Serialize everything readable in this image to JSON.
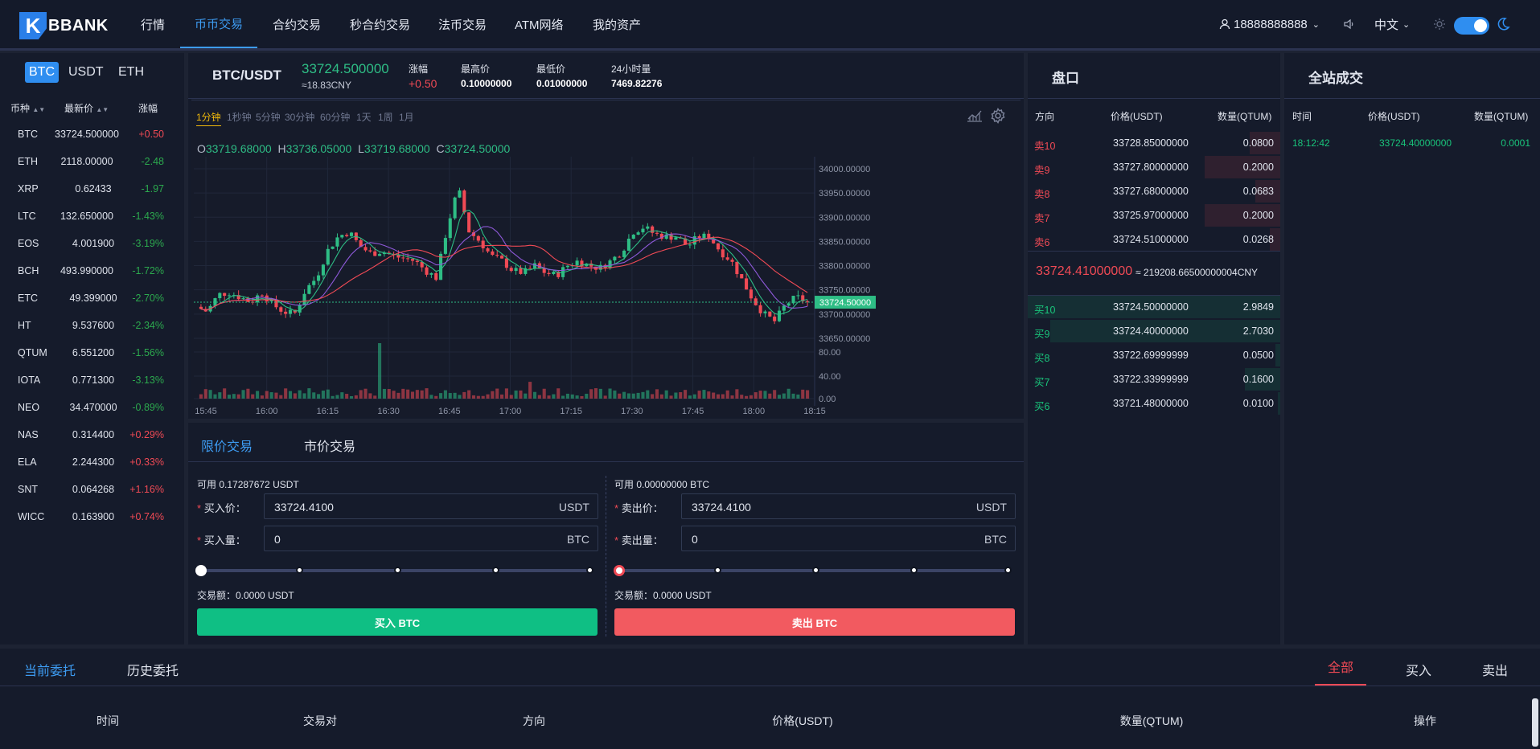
{
  "header": {
    "logo": "BBANK",
    "nav": [
      "行情",
      "币币交易",
      "合约交易",
      "秒合约交易",
      "法币交易",
      "ATM网络",
      "我的资产"
    ],
    "user": "18888888888",
    "lang": "中文"
  },
  "market": {
    "tabs": [
      "BTC",
      "USDT",
      "ETH"
    ],
    "headers": [
      "币种",
      "最新价",
      "涨幅"
    ],
    "rows": [
      {
        "coin": "BTC",
        "price": "33724.500000",
        "change": "+0.50",
        "dir": "up"
      },
      {
        "coin": "ETH",
        "price": "2118.00000",
        "change": "-2.48",
        "dir": "down"
      },
      {
        "coin": "XRP",
        "price": "0.62433",
        "change": "-1.97",
        "dir": "down"
      },
      {
        "coin": "LTC",
        "price": "132.650000",
        "change": "-1.43%",
        "dir": "down"
      },
      {
        "coin": "EOS",
        "price": "4.001900",
        "change": "-3.19%",
        "dir": "down"
      },
      {
        "coin": "BCH",
        "price": "493.990000",
        "change": "-1.72%",
        "dir": "down"
      },
      {
        "coin": "ETC",
        "price": "49.399000",
        "change": "-2.70%",
        "dir": "down"
      },
      {
        "coin": "HT",
        "price": "9.537600",
        "change": "-2.34%",
        "dir": "down"
      },
      {
        "coin": "QTUM",
        "price": "6.551200",
        "change": "-1.56%",
        "dir": "down"
      },
      {
        "coin": "IOTA",
        "price": "0.771300",
        "change": "-3.13%",
        "dir": "down"
      },
      {
        "coin": "NEO",
        "price": "34.470000",
        "change": "-0.89%",
        "dir": "down"
      },
      {
        "coin": "NAS",
        "price": "0.314400",
        "change": "+0.29%",
        "dir": "up"
      },
      {
        "coin": "ELA",
        "price": "2.244300",
        "change": "+0.33%",
        "dir": "up"
      },
      {
        "coin": "SNT",
        "price": "0.064268",
        "change": "+1.16%",
        "dir": "up"
      },
      {
        "coin": "WICC",
        "price": "0.163900",
        "change": "+0.74%",
        "dir": "up"
      }
    ]
  },
  "ticker": {
    "pair": "BTC/USDT",
    "price": "33724.500000",
    "cny": "≈18.83CNY",
    "change_label": "涨幅",
    "change": "+0.50",
    "high_label": "最高价",
    "high": "0.10000000",
    "low_label": "最低价",
    "low": "0.01000000",
    "vol_label": "24小时量",
    "vol": "7469.82276"
  },
  "chart_toolbar": {
    "intervals": [
      "1分钟",
      "1秒钟",
      "5分钟",
      "30分钟",
      "60分钟",
      "1天",
      "1周",
      "1月"
    ]
  },
  "chart_data": {
    "type": "candlestick",
    "ohlc_label": {
      "o": "O",
      "o_val": "33719.68000",
      "h": "H",
      "h_val": "33736.05000",
      "l": "L",
      "l_val": "33719.68000",
      "c": "C",
      "c_val": "33724.50000"
    },
    "y_ticks": [
      "34000.00000",
      "33950.00000",
      "33900.00000",
      "33850.00000",
      "33800.00000",
      "33750.00000",
      "33700.00000",
      "33650.00000"
    ],
    "ylim": [
      33630,
      34005
    ],
    "vol_ticks": [
      "80.00",
      "40.00",
      "0.00"
    ],
    "x_ticks": [
      "15:45",
      "16:00",
      "16:15",
      "16:30",
      "16:45",
      "17:00",
      "17:15",
      "17:30",
      "17:45",
      "18:00",
      "18:15"
    ],
    "last_price": "33724.50000",
    "last_price_value": 33724.5,
    "up_color": "#2ebd85",
    "down_color": "#f04a55"
  },
  "trade": {
    "tabs": [
      "限价交易",
      "市价交易"
    ],
    "buy": {
      "avail": "可用 0.17287672 USDT",
      "price_label": "买入价：",
      "price": "33724.4100",
      "price_unit": "USDT",
      "amount_label": "买入量：",
      "amount": "0",
      "amount_unit": "BTC",
      "total": "交易额：0.0000 USDT",
      "button": "买入 BTC",
      "color": "#0fbf84"
    },
    "sell": {
      "avail": "可用 0.00000000 BTC",
      "price_label": "卖出价：",
      "price": "33724.4100",
      "price_unit": "USDT",
      "amount_label": "卖出量：",
      "amount": "0",
      "amount_unit": "BTC",
      "total": "交易额：0.0000 USDT",
      "button": "卖出 BTC",
      "color": "#f25a60"
    }
  },
  "orderbook": {
    "title": "盘口",
    "headers": [
      "方向",
      "价格(USDT)",
      "数量(QTUM)"
    ],
    "asks": [
      {
        "side": "卖10",
        "price": "33728.85000000",
        "qty": "0.0800",
        "depth": 0.12
      },
      {
        "side": "卖9",
        "price": "33727.80000000",
        "qty": "0.2000",
        "depth": 0.3
      },
      {
        "side": "卖8",
        "price": "33727.68000000",
        "qty": "0.0683",
        "depth": 0.1
      },
      {
        "side": "卖7",
        "price": "33725.97000000",
        "qty": "0.2000",
        "depth": 0.3
      },
      {
        "side": "卖6",
        "price": "33724.51000000",
        "qty": "0.0268",
        "depth": 0.04
      }
    ],
    "mid_price": "33724.41000000",
    "mid_cny": "≈ 219208.66500000004CNY",
    "bids": [
      {
        "side": "买10",
        "price": "33724.50000000",
        "qty": "2.9849",
        "depth": 1.0
      },
      {
        "side": "买9",
        "price": "33724.40000000",
        "qty": "2.7030",
        "depth": 0.91
      },
      {
        "side": "买8",
        "price": "33722.69999999",
        "qty": "0.0500",
        "depth": 0.02
      },
      {
        "side": "买7",
        "price": "33722.33999999",
        "qty": "0.1600",
        "depth": 0.14
      },
      {
        "side": "买6",
        "price": "33721.48000000",
        "qty": "0.0100",
        "depth": 0.01
      }
    ]
  },
  "trades": {
    "title": "全站成交",
    "headers": [
      "时间",
      "价格(USDT)",
      "数量(QTUM)"
    ],
    "rows": [
      {
        "time": "18:12:42",
        "price": "33724.40000000",
        "qty": "0.0001"
      }
    ]
  },
  "orders": {
    "tabs": [
      "当前委托",
      "历史委托"
    ],
    "filters": [
      "全部",
      "买入",
      "卖出"
    ],
    "columns": [
      "时间",
      "交易对",
      "方向",
      "价格(USDT)",
      "数量(QTUM)",
      "操作"
    ]
  }
}
